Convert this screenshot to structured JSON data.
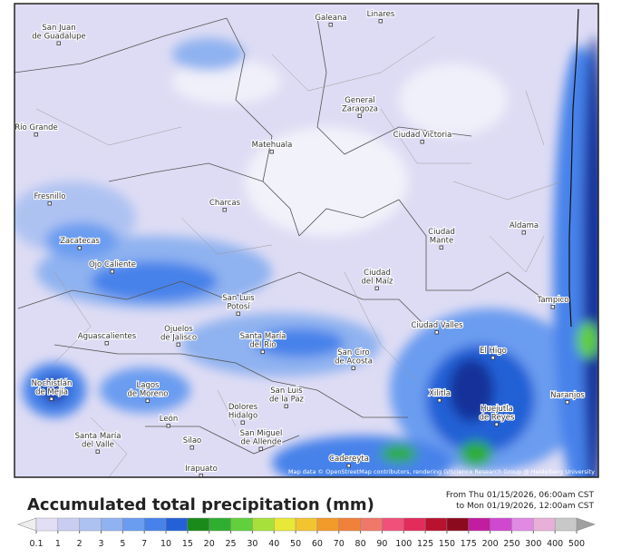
{
  "map": {
    "places": [
      "Galeana",
      "Linares",
      "San Juan\nde Guadalupe",
      "Río Grande",
      "General\nZaragoza",
      "Matehuala",
      "Ciudad Victoria",
      "Fresnillo",
      "Charcas",
      "Aldama",
      "Zacatecas",
      "Ciudad\nMante",
      "Ojo Caliente",
      "Ciudad\ndel Maíz",
      "San Luis\nPotosí",
      "Tampico",
      "Ciudad Valles",
      "Aguascalientes",
      "Ojuelos\nde Jalisco",
      "Santa María\ndel Río",
      "El Higo",
      "San Ciro\nde Acosta",
      "Nochistlán\nde Mejía",
      "Lagos\nde Moreno",
      "Xilitla",
      "Naranjos",
      "San Luis\nde la Paz",
      "Huejutla\nde Reyes",
      "Dolores\nHidalgo",
      "León",
      "Silao",
      "Santa María\ndel Valle",
      "San Miguel\nde Allende",
      "Cadereyta",
      "Irapuato"
    ],
    "attribution": "Map data © OpenStreetMap contributors, rendering GIScience Research Group @ Heidelberg University"
  },
  "legend": {
    "title": "Accumulated total precipitation (mm)",
    "period": [
      "From Thu 01/15/2026, 06:00am CST",
      "to Mon 01/19/2026, 12:00am CST"
    ],
    "ticks": [
      0.1,
      1,
      2,
      3,
      5,
      7,
      10,
      15,
      20,
      25,
      30,
      40,
      50,
      60,
      70,
      80,
      90,
      100,
      125,
      150,
      175,
      200,
      250,
      300,
      400,
      500
    ],
    "colors": [
      "#e2def6",
      "#c9cdf2",
      "#aec2f2",
      "#8fb2f0",
      "#6a9cf0",
      "#4682ea",
      "#2460d6",
      "#1a8a1a",
      "#2fae2f",
      "#62cf3c",
      "#a8e03a",
      "#e8e836",
      "#f2c430",
      "#f29a2a",
      "#f0803a",
      "#f07868",
      "#f0507a",
      "#e42c5c",
      "#b8122e",
      "#8c0a1e",
      "#c21ca0",
      "#d048d0",
      "#e08ae4",
      "#e8b0d8",
      "#c8c8c8"
    ],
    "low_color": "#eeeeee",
    "high_color": "#a0a0a0"
  }
}
